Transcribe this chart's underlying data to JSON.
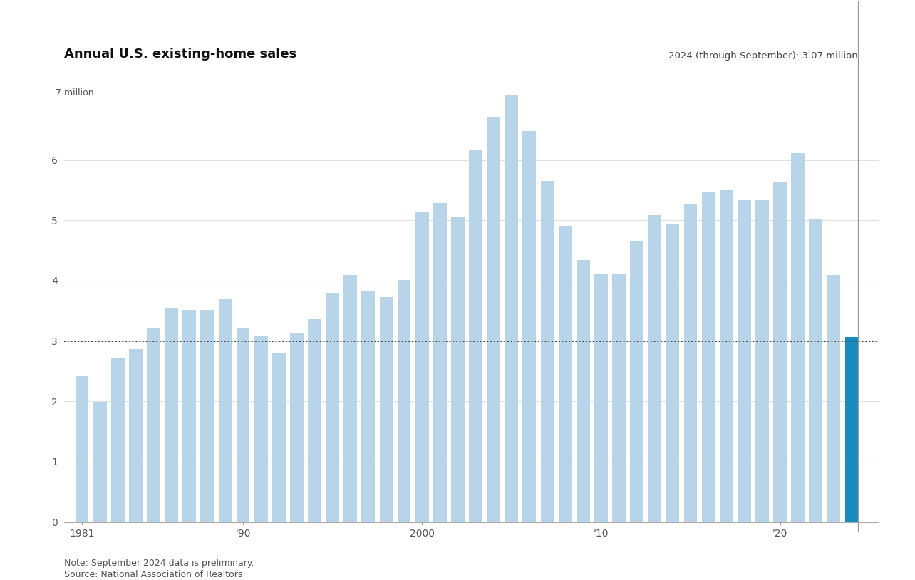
{
  "title": "Annual U.S. existing-home sales",
  "annotation": "2024 (through September): 3.07 million",
  "note": "Note: September 2024 data is preliminary.",
  "source": "Source: National Association of Realtors",
  "ylabel_top": "7 million",
  "dotted_line_value": 3.0,
  "years": [
    1981,
    1982,
    1983,
    1984,
    1985,
    1986,
    1987,
    1988,
    1989,
    1990,
    1991,
    1992,
    1993,
    1994,
    1995,
    1996,
    1997,
    1998,
    1999,
    2000,
    2001,
    2002,
    2003,
    2004,
    2005,
    2006,
    2007,
    2008,
    2009,
    2010,
    2011,
    2012,
    2013,
    2014,
    2015,
    2016,
    2017,
    2018,
    2019,
    2020,
    2021,
    2022,
    2023,
    2024
  ],
  "values": [
    2.42,
    1.99,
    2.72,
    2.87,
    3.21,
    3.55,
    3.52,
    3.51,
    3.71,
    3.22,
    3.08,
    2.8,
    3.14,
    3.37,
    3.8,
    4.09,
    3.83,
    3.73,
    4.01,
    5.15,
    5.29,
    5.05,
    6.17,
    6.72,
    7.08,
    6.48,
    5.65,
    4.91,
    4.34,
    4.12,
    4.12,
    4.66,
    5.09,
    4.94,
    5.26,
    5.46,
    5.51,
    5.34,
    5.34,
    5.64,
    6.12,
    5.03,
    4.09,
    3.07
  ],
  "bar_color_default": "#b8d4e8",
  "bar_color_highlight": "#1a8bbf",
  "highlight_year": 2024,
  "annotation_line_color": "#999999",
  "dotted_line_color": "#333333",
  "background_color": "#ffffff",
  "grid_color": "#e0e0e0",
  "title_fontsize": 13,
  "axis_fontsize": 10,
  "note_fontsize": 9,
  "yticks": [
    0,
    1,
    2,
    3,
    4,
    5,
    6
  ],
  "ylim": [
    0,
    7.5
  ],
  "xtick_labels": {
    "1981": "1981",
    "1990": "'90",
    "2000": "2000",
    "2010": "'10",
    "2020": "'20"
  }
}
